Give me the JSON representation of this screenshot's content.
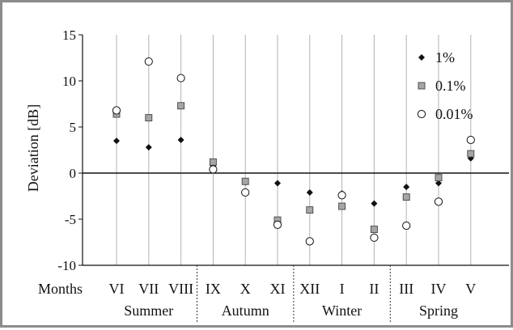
{
  "chart_data": {
    "type": "scatter",
    "title": "",
    "xlabel": "",
    "ylabel": "Deviation [dB]",
    "ylim": [
      -10,
      15
    ],
    "yticks": [
      -10,
      -5,
      0,
      5,
      10,
      15
    ],
    "x_prefix_label": "Months",
    "categories": [
      "VI",
      "VII",
      "VIII",
      "IX",
      "X",
      "XI",
      "XII",
      "I",
      "II",
      "III",
      "IV",
      "V"
    ],
    "groups": [
      {
        "name": "Summer",
        "categories": [
          "VI",
          "VII",
          "VIII"
        ]
      },
      {
        "name": "Autumn",
        "categories": [
          "IX",
          "X",
          "XI"
        ]
      },
      {
        "name": "Winter",
        "categories": [
          "XII",
          "I",
          "II"
        ]
      },
      {
        "name": "Spring",
        "categories": [
          "III",
          "IV",
          "V"
        ]
      }
    ],
    "series": [
      {
        "name": "1%",
        "marker": "diamond",
        "color": "#111111",
        "values": [
          3.5,
          2.8,
          3.6,
          0.8,
          -1.0,
          -1.1,
          -2.1,
          -2.2,
          -3.3,
          -1.5,
          -1.1,
          1.6
        ]
      },
      {
        "name": "0.1%",
        "marker": "square",
        "color": "#a6a6a6",
        "values": [
          6.4,
          6.0,
          7.3,
          1.2,
          -0.9,
          -5.1,
          -4.0,
          -3.6,
          -6.1,
          -2.6,
          -0.5,
          2.1
        ]
      },
      {
        "name": "0.01%",
        "marker": "circle",
        "color": "#ffffff",
        "values": [
          6.8,
          12.1,
          10.3,
          0.4,
          -2.1,
          -5.6,
          -7.4,
          -2.4,
          -7.0,
          -5.7,
          -3.1,
          3.6
        ]
      }
    ],
    "grid": "vertical",
    "legend_position": "top-right"
  }
}
